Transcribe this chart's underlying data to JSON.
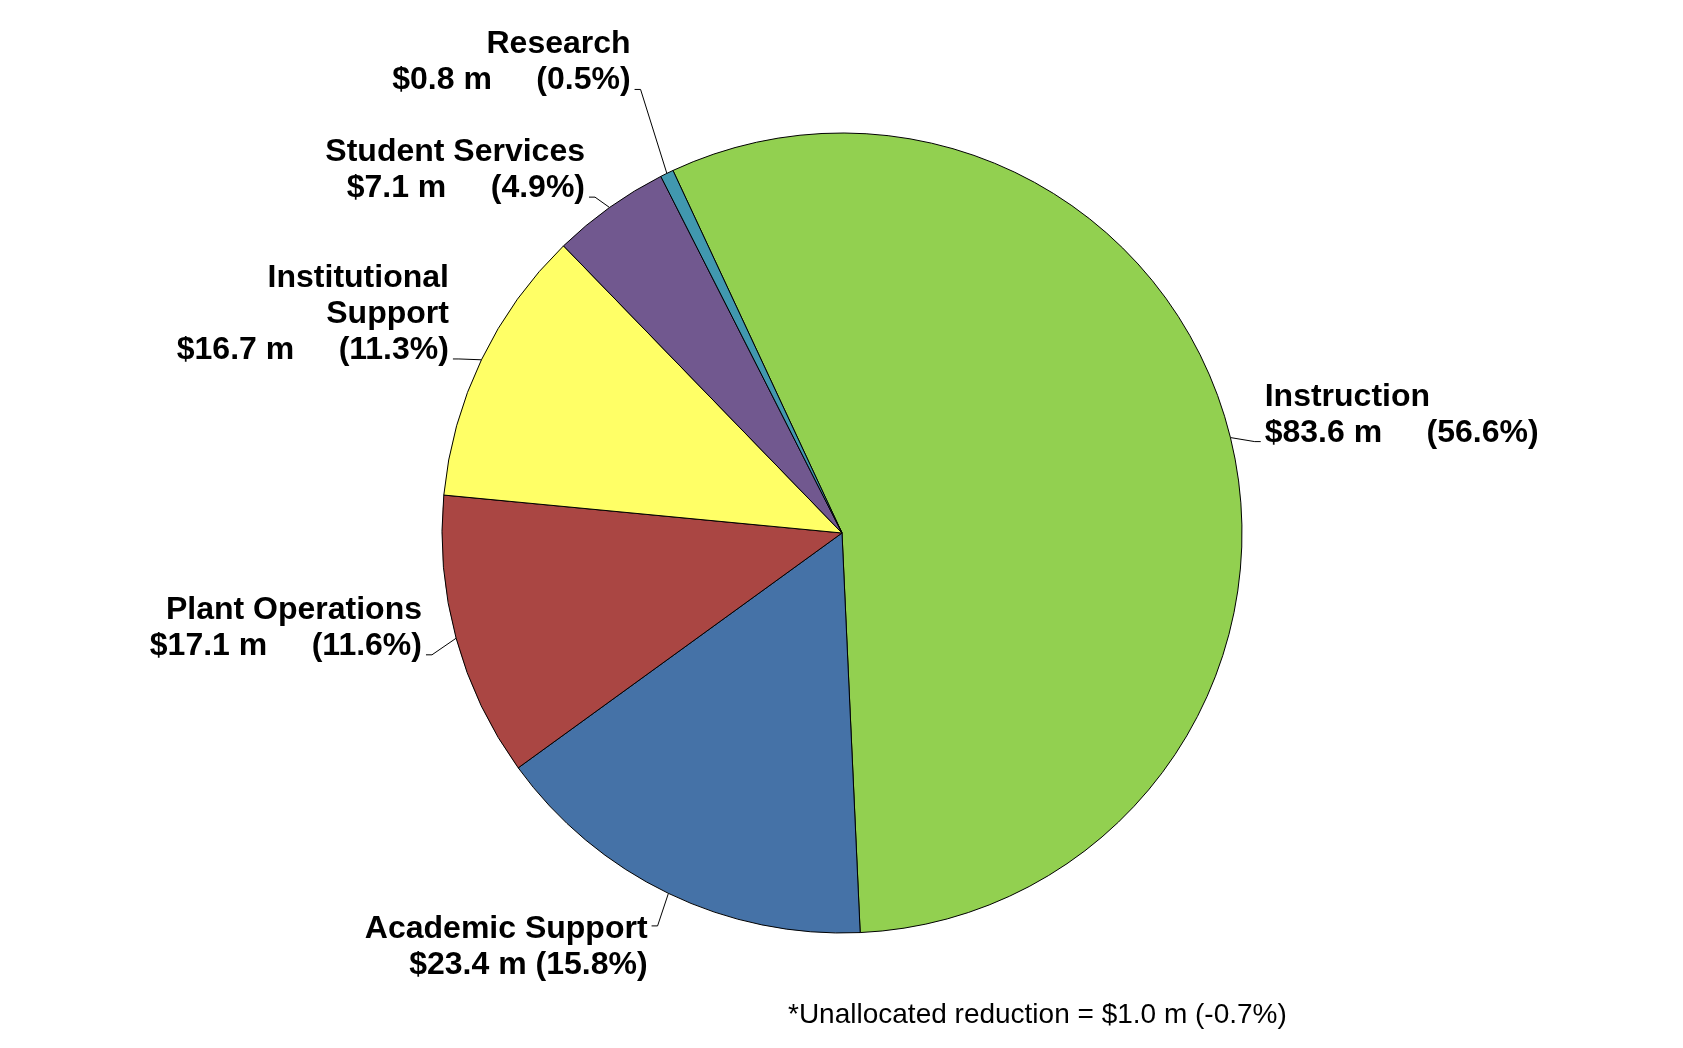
{
  "chart_data": {
    "type": "pie",
    "categories": [
      "Instruction",
      "Academic Support",
      "Plant Operations",
      "Institutional Support",
      "Student Services",
      "Research"
    ],
    "values": [
      83.6,
      23.4,
      17.1,
      16.7,
      7.1,
      0.8
    ],
    "colors": [
      "#92d050",
      "#4572a7",
      "#aa4643",
      "#ffff66",
      "#71588f",
      "#4198af"
    ],
    "value_labels": [
      "$83.6 m     (56.6%)",
      "$23.4 m (15.8%)",
      "$17.1 m     (11.6%)",
      "$16.7 m     (11.3%)",
      "$7.1 m     (4.9%)",
      "$0.8 m     (0.5%)"
    ],
    "annotations": [
      "*Unallocated reduction = $1.0 m (-0.7%)"
    ]
  }
}
